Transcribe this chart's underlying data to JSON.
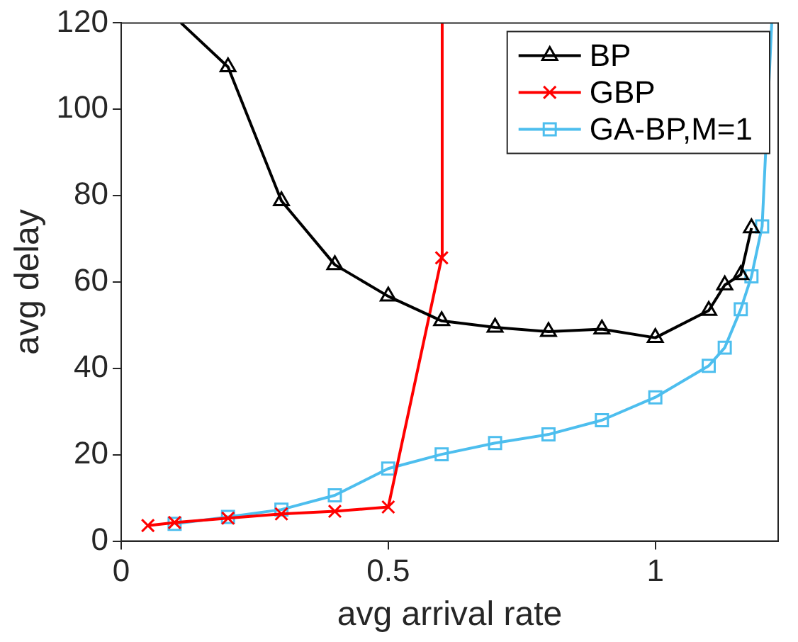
{
  "chart_data": {
    "type": "line",
    "xlabel": "avg arrival rate",
    "ylabel": "avg delay",
    "xlim": [
      0,
      1.23
    ],
    "xticks": [
      0,
      0.5,
      1
    ],
    "ylim": [
      0,
      120
    ],
    "yticks": [
      0,
      20,
      40,
      60,
      80,
      100,
      120
    ],
    "grid": false,
    "legend": "top right",
    "line_style": "solid",
    "series": [
      {
        "name": "BP",
        "color": "#000000",
        "marker": "triangle",
        "x": [
          0.112,
          0.2,
          0.3,
          0.4,
          0.5,
          0.6,
          0.7,
          0.8,
          0.9,
          1.0,
          1.1,
          1.13,
          1.16,
          1.18
        ],
        "values": [
          120,
          109.8,
          78.8,
          64,
          56.7,
          51,
          49.5,
          48.5,
          49.1,
          47.1,
          53.4,
          59.3,
          61.7,
          72.5
        ]
      },
      {
        "name": "GBP",
        "color": "#ff0000",
        "marker": "cross",
        "x": [
          0.05,
          0.1,
          0.2,
          0.3,
          0.4,
          0.5,
          0.6,
          0.601
        ],
        "values": [
          3.6,
          4.3,
          5.3,
          6.3,
          6.9,
          7.9,
          65.6,
          120
        ]
      },
      {
        "name": "GA-BP,M=1",
        "color": "#4dbeee",
        "marker": "square",
        "x": [
          0.1,
          0.2,
          0.3,
          0.4,
          0.5,
          0.6,
          0.7,
          0.8,
          0.9,
          1.0,
          1.1,
          1.13,
          1.16,
          1.18,
          1.2,
          1.218
        ],
        "values": [
          4,
          5.6,
          7.3,
          10.6,
          16.8,
          20.1,
          22.7,
          24.7,
          28,
          33.3,
          40.6,
          44.8,
          53.7,
          61.3,
          72.9,
          120
        ]
      }
    ]
  }
}
